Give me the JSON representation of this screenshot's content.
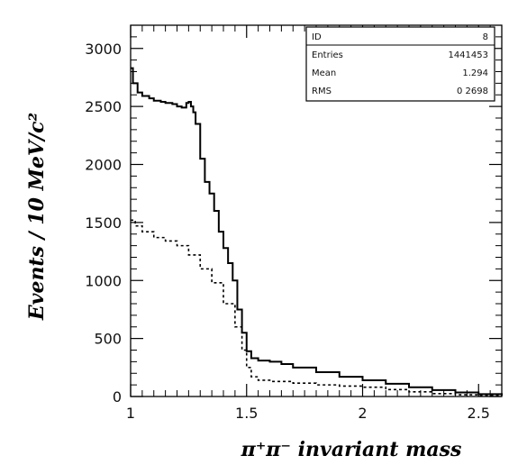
{
  "chart_data": {
    "type": "line",
    "xlabel": "π⁺π⁻ invariant mass",
    "ylabel": "Events / 10 MeV/c²",
    "xlim": [
      1.0,
      2.6
    ],
    "ylim": [
      0,
      3200
    ],
    "x_ticks": [
      "1",
      "1.5",
      "2",
      "2.5"
    ],
    "y_ticks": [
      "0",
      "500",
      "1000",
      "1500",
      "2000",
      "2500",
      "3000"
    ],
    "grid": false,
    "stats_box": {
      "position": "top-right",
      "rows": [
        {
          "label": "ID",
          "value": "8"
        },
        {
          "label": "Entries",
          "value": "1441453"
        },
        {
          "label": "Mean",
          "value": "1.294"
        },
        {
          "label": "RMS",
          "value": "0 2698"
        }
      ]
    },
    "series": [
      {
        "style": "solid",
        "color": "#000000",
        "x": [
          1.0,
          1.01,
          1.03,
          1.05,
          1.08,
          1.1,
          1.13,
          1.15,
          1.18,
          1.2,
          1.22,
          1.24,
          1.25,
          1.26,
          1.27,
          1.28,
          1.3,
          1.32,
          1.34,
          1.36,
          1.38,
          1.4,
          1.42,
          1.44,
          1.46,
          1.48,
          1.5,
          1.52,
          1.55,
          1.6,
          1.65,
          1.7,
          1.8,
          1.9,
          2.0,
          2.1,
          2.2,
          2.3,
          2.4,
          2.5,
          2.6
        ],
        "y": [
          2830,
          2700,
          2620,
          2590,
          2570,
          2550,
          2540,
          2530,
          2520,
          2500,
          2490,
          2530,
          2540,
          2500,
          2450,
          2350,
          2050,
          1850,
          1750,
          1600,
          1420,
          1280,
          1150,
          1000,
          750,
          550,
          390,
          330,
          310,
          300,
          280,
          250,
          210,
          170,
          140,
          110,
          80,
          55,
          35,
          20,
          10
        ]
      },
      {
        "style": "dashed",
        "color": "#000000",
        "x": [
          1.0,
          1.02,
          1.05,
          1.1,
          1.15,
          1.2,
          1.25,
          1.3,
          1.35,
          1.4,
          1.45,
          1.48,
          1.5,
          1.52,
          1.55,
          1.6,
          1.7,
          1.8,
          1.9,
          2.0,
          2.1,
          2.2,
          2.3,
          2.4,
          2.5,
          2.6
        ],
        "y": [
          1520,
          1470,
          1420,
          1370,
          1340,
          1300,
          1220,
          1100,
          980,
          800,
          600,
          400,
          250,
          170,
          140,
          130,
          115,
          100,
          90,
          80,
          60,
          40,
          25,
          15,
          10,
          5
        ]
      }
    ]
  }
}
